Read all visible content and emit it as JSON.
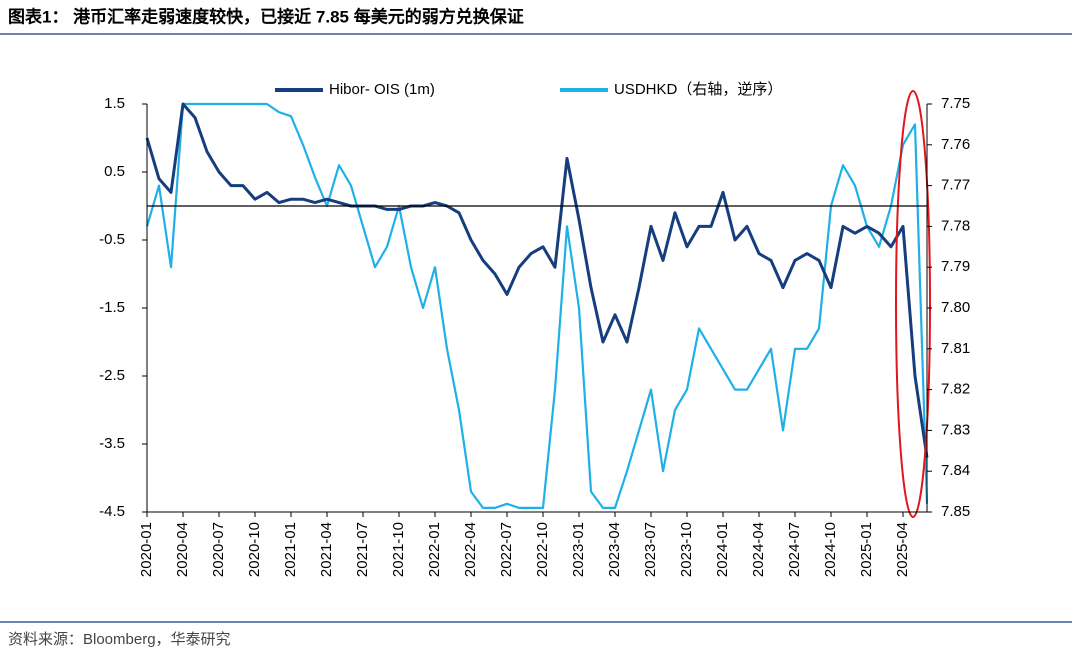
{
  "title": "图表1： 港币汇率走弱速度较快，已接近 7.85 每美元的弱方兑换保证",
  "source": "资料来源：Bloomberg，华泰研究",
  "chart_data": {
    "type": "line",
    "x": [
      "2020-01",
      "2020-02",
      "2020-03",
      "2020-04",
      "2020-05",
      "2020-06",
      "2020-07",
      "2020-08",
      "2020-09",
      "2020-10",
      "2020-11",
      "2020-12",
      "2021-01",
      "2021-02",
      "2021-03",
      "2021-04",
      "2021-05",
      "2021-06",
      "2021-07",
      "2021-08",
      "2021-09",
      "2021-10",
      "2021-11",
      "2021-12",
      "2022-01",
      "2022-02",
      "2022-03",
      "2022-04",
      "2022-05",
      "2022-06",
      "2022-07",
      "2022-08",
      "2022-09",
      "2022-10",
      "2022-11",
      "2022-12",
      "2023-01",
      "2023-02",
      "2023-03",
      "2023-04",
      "2023-05",
      "2023-06",
      "2023-07",
      "2023-08",
      "2023-09",
      "2023-10",
      "2023-11",
      "2023-12",
      "2024-01",
      "2024-02",
      "2024-03",
      "2024-04",
      "2024-05",
      "2024-06",
      "2024-07",
      "2024-08",
      "2024-09",
      "2024-10",
      "2024-11",
      "2024-12",
      "2025-01",
      "2025-02",
      "2025-03",
      "2025-04",
      "2025-05",
      "2025-06"
    ],
    "series": [
      {
        "name": "Hibor- OIS (1m)",
        "color": "#163e7e",
        "values": [
          1.0,
          0.4,
          0.2,
          1.5,
          1.3,
          0.8,
          0.5,
          0.3,
          0.3,
          0.1,
          0.2,
          0.05,
          0.1,
          0.1,
          0.05,
          0.1,
          0.05,
          0.0,
          0.0,
          0.0,
          -0.05,
          -0.05,
          0.0,
          0.0,
          0.05,
          0.0,
          -0.1,
          -0.5,
          -0.8,
          -1.0,
          -1.3,
          -0.9,
          -0.7,
          -0.6,
          -0.9,
          0.7,
          -0.2,
          -1.2,
          -2.0,
          -1.6,
          -2.0,
          -1.2,
          -0.3,
          -0.8,
          -0.1,
          -0.6,
          -0.3,
          -0.3,
          0.2,
          -0.5,
          -0.3,
          -0.7,
          -0.8,
          -1.2,
          -0.8,
          -0.7,
          -0.8,
          -1.2,
          -0.3,
          -0.4,
          -0.3,
          -0.4,
          -0.6,
          -0.3,
          -2.5,
          -3.7
        ]
      },
      {
        "name": "USDHKD（右轴，逆序）",
        "color": "#1fb0e8",
        "axis": "y2",
        "values": [
          7.78,
          7.77,
          7.79,
          7.75,
          7.75,
          7.75,
          7.75,
          7.75,
          7.75,
          7.75,
          7.75,
          7.752,
          7.753,
          7.76,
          7.768,
          7.775,
          7.765,
          7.77,
          7.78,
          7.79,
          7.785,
          7.775,
          7.79,
          7.8,
          7.79,
          7.81,
          7.825,
          7.845,
          7.849,
          7.849,
          7.848,
          7.849,
          7.849,
          7.849,
          7.82,
          7.78,
          7.8,
          7.845,
          7.849,
          7.849,
          7.84,
          7.83,
          7.82,
          7.84,
          7.825,
          7.82,
          7.805,
          7.81,
          7.815,
          7.82,
          7.82,
          7.815,
          7.81,
          7.83,
          7.81,
          7.81,
          7.805,
          7.775,
          7.765,
          7.77,
          7.78,
          7.785,
          7.775,
          7.76,
          7.755,
          7.848
        ]
      }
    ],
    "ylim": [
      -4.5,
      1.5
    ],
    "yticks": [
      1.5,
      0.5,
      -0.5,
      -1.5,
      -2.5,
      -3.5,
      -4.5
    ],
    "y2lim": [
      7.75,
      7.85
    ],
    "y2_reversed": true,
    "y2ticks": [
      7.75,
      7.76,
      7.77,
      7.78,
      7.79,
      {
        "value": 7.8,
        "label": "7.80"
      },
      7.81,
      7.82,
      7.83,
      7.84,
      7.85
    ],
    "xticks": [
      "2020-01",
      "2020-04",
      "2020-07",
      "2020-10",
      "2021-01",
      "2021-04",
      "2021-07",
      "2021-10",
      "2022-01",
      "2022-04",
      "2022-07",
      "2022-10",
      "2023-01",
      "2023-04",
      "2023-07",
      "2023-10",
      "2024-01",
      "2024-04",
      "2024-07",
      "2024-10",
      "2025-01",
      "2025-04"
    ],
    "legend": "top"
  }
}
